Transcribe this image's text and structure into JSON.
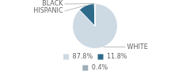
{
  "chart_data": {
    "type": "pie",
    "categories": [
      "87.8%",
      "11.8%",
      "0.4%"
    ],
    "values": [
      87.8,
      11.8,
      0.4
    ],
    "colors": [
      "#cdd9e3",
      "#2e6b8a",
      "#9eadb8"
    ],
    "annotations": [
      "WHITE",
      "HISPANIC",
      "BLACK"
    ],
    "legend": "bottom"
  }
}
